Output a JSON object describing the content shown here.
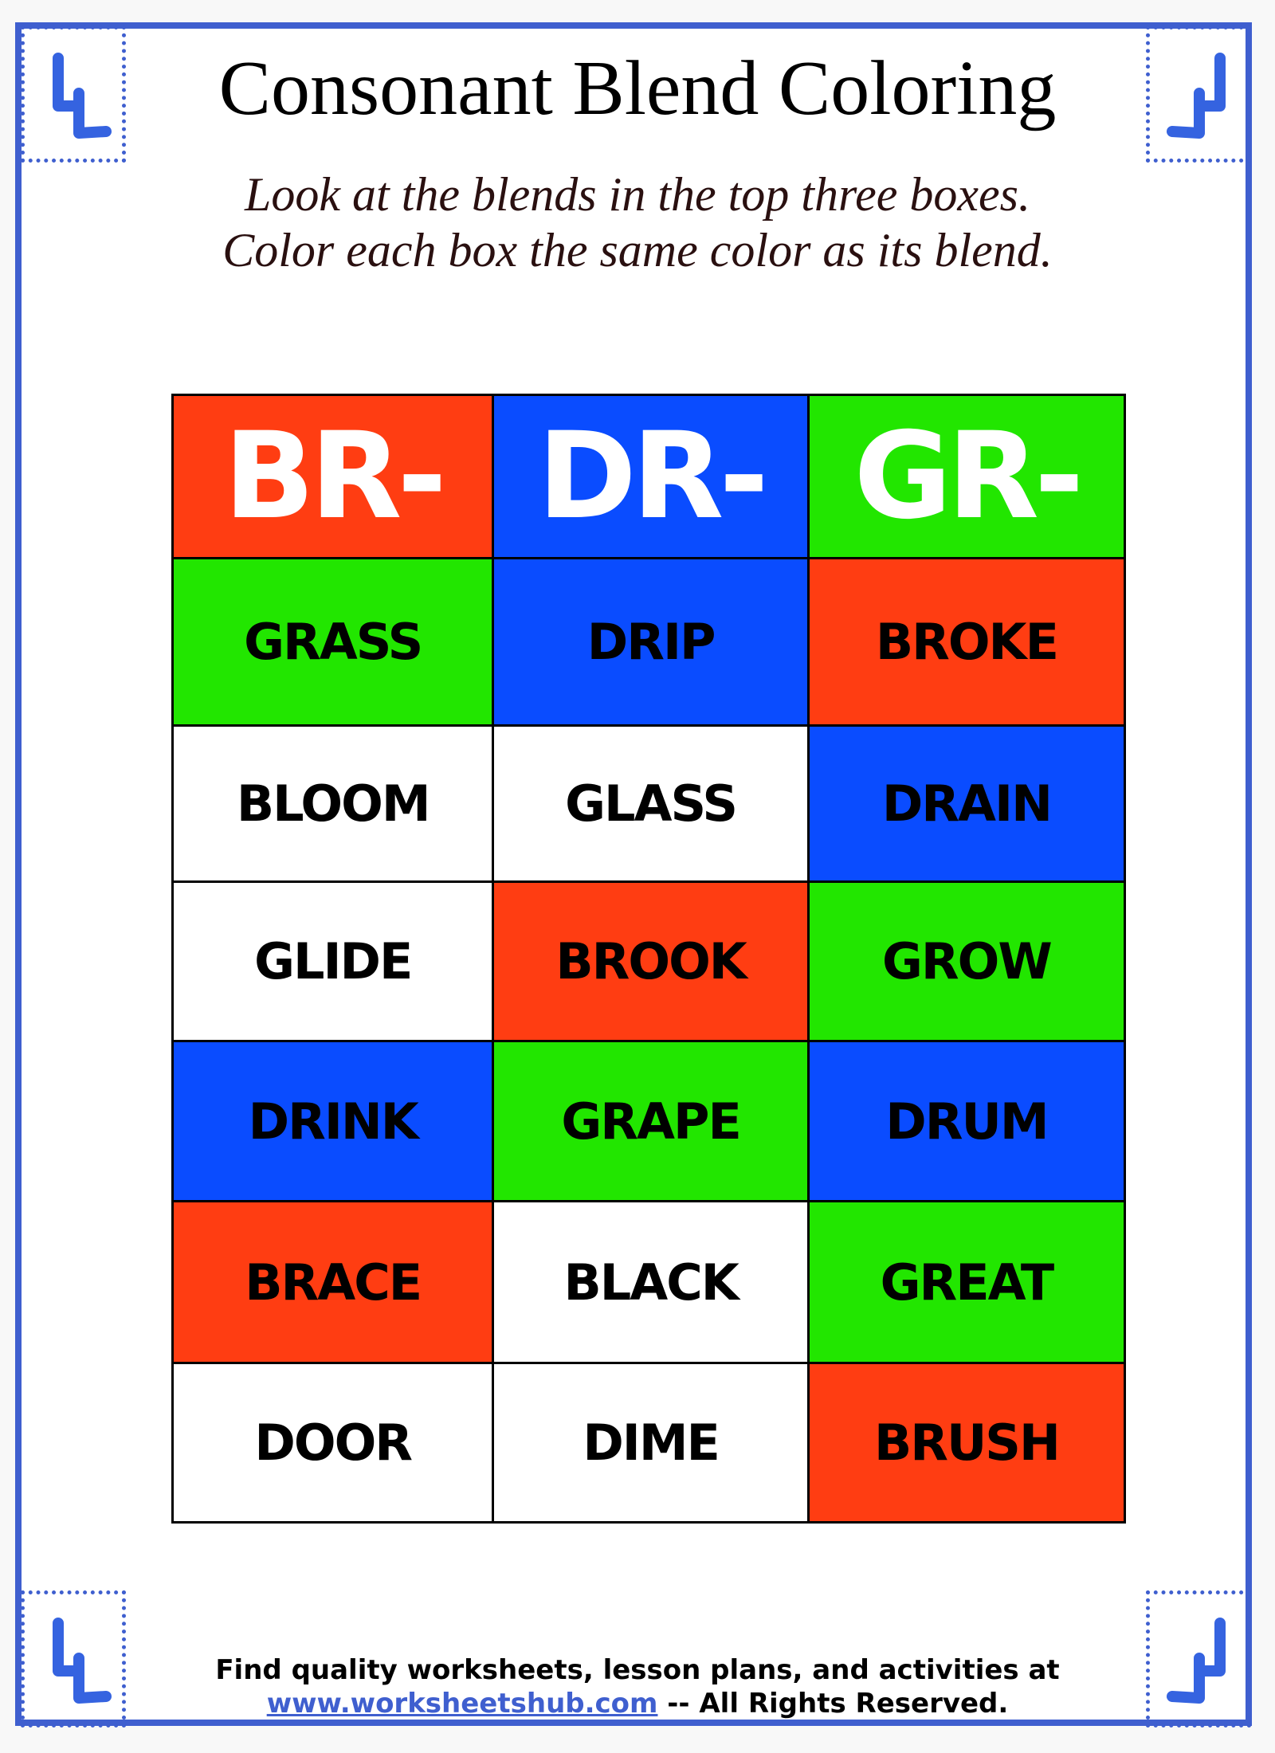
{
  "title": "Consonant Blend Coloring",
  "instructions": [
    "Look at the blends in the top three boxes.",
    "Color each box the same color as its blend."
  ],
  "colors": {
    "red": "#ff3d12",
    "blue": "#0a4cff",
    "green": "#22e600",
    "white": "#ffffff",
    "border": "#3f5fcf"
  },
  "blends": [
    {
      "label": "BR-",
      "color": "#ff3d12"
    },
    {
      "label": "DR-",
      "color": "#0a4cff"
    },
    {
      "label": "GR-",
      "color": "#22e600"
    }
  ],
  "rows": [
    [
      {
        "word": "GRASS",
        "color": "#22e600"
      },
      {
        "word": "DRIP",
        "color": "#0a4cff"
      },
      {
        "word": "BROKE",
        "color": "#ff3d12"
      }
    ],
    [
      {
        "word": "BLOOM",
        "color": "#ffffff"
      },
      {
        "word": "GLASS",
        "color": "#ffffff"
      },
      {
        "word": "DRAIN",
        "color": "#0a4cff"
      }
    ],
    [
      {
        "word": "GLIDE",
        "color": "#ffffff"
      },
      {
        "word": "BROOK",
        "color": "#ff3d12"
      },
      {
        "word": "GROW",
        "color": "#22e600"
      }
    ],
    [
      {
        "word": "DRINK",
        "color": "#0a4cff"
      },
      {
        "word": "GRAPE",
        "color": "#22e600"
      },
      {
        "word": "DRUM",
        "color": "#0a4cff"
      }
    ],
    [
      {
        "word": "BRACE",
        "color": "#ff3d12"
      },
      {
        "word": "BLACK",
        "color": "#ffffff"
      },
      {
        "word": "GREAT",
        "color": "#22e600"
      }
    ],
    [
      {
        "word": "DOOR",
        "color": "#ffffff"
      },
      {
        "word": "DIME",
        "color": "#ffffff"
      },
      {
        "word": "BRUSH",
        "color": "#ff3d12"
      }
    ]
  ],
  "footer": {
    "line1": "Find quality worksheets, lesson plans, and activities at",
    "link": "www.worksheetshub.com",
    "rights": " -- All Rights Reserved."
  }
}
